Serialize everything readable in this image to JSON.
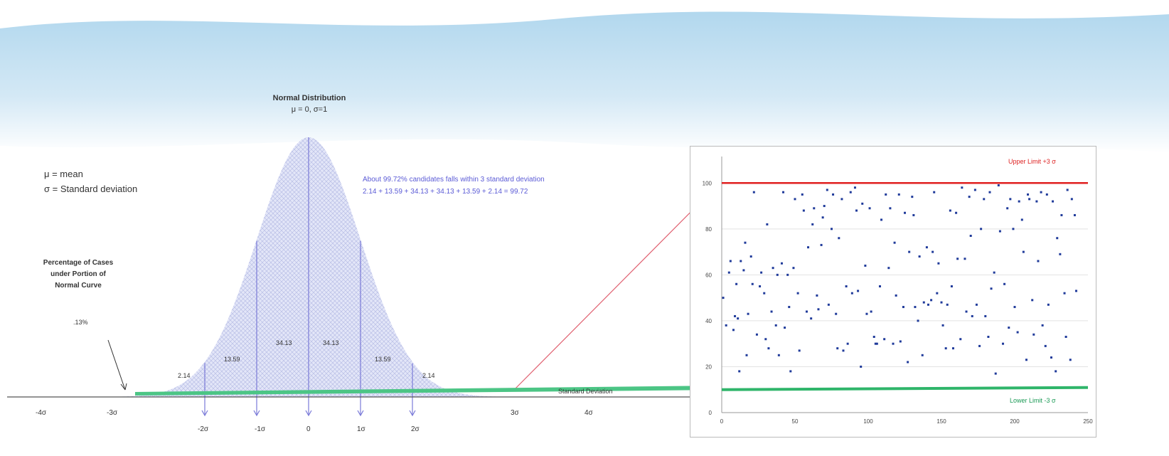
{
  "normal_chart": {
    "title": "Normal Distribution",
    "subtitle": "μ = 0, σ=1",
    "legend_mean": "μ = mean",
    "legend_sd": "σ = Standard deviation",
    "caption_lines": [
      "Percentage of Cases",
      "under Portion of",
      "Normal Curve"
    ],
    "tail_percent": ".13%",
    "note_line1": "About 99.72% candidates falls within 3 standard deviation",
    "note_line2": "2.14 + 13.59 + 34.13 + 34.13 + 13.59 + 2.14 = 99.72",
    "segment_percents": [
      "2.14",
      "13.59",
      "34.13",
      "34.13",
      "13.59",
      "2.14"
    ],
    "axis_caption": "Standard Deviation",
    "top_ticks": [
      "-4σ",
      "-3σ",
      "3σ",
      "4σ"
    ],
    "bottom_ticks": [
      "-2σ",
      "-1σ",
      "0",
      "1σ",
      "2σ"
    ],
    "colors": {
      "fill": "#c9cdf0",
      "axis": "#2a9a5a",
      "arrow": "#7a7ad8",
      "connector": "#e06070"
    }
  },
  "control_chart": {
    "upper_label": "Upper Limit +3 σ",
    "lower_label": "Lower Limit -3 σ",
    "colors": {
      "upper": "#e02020",
      "lower": "#2fb56a",
      "points": "#1f3a9a"
    }
  },
  "chart_data": {
    "type": "scatter",
    "xlabel": "",
    "ylabel": "",
    "xlim": [
      0,
      250
    ],
    "ylim": [
      0,
      110
    ],
    "x_ticks": [
      0,
      50,
      100,
      150,
      200,
      250
    ],
    "y_ticks": [
      0,
      20,
      40,
      60,
      80,
      100
    ],
    "grid": true,
    "upper_limit": 100,
    "lower_limit": 10,
    "series": [
      {
        "x": [
          1,
          3,
          5,
          6,
          8,
          9,
          10,
          11,
          12,
          13,
          15,
          16,
          17,
          18,
          20,
          21,
          22,
          24,
          26,
          27,
          29,
          30,
          31,
          32,
          34,
          35,
          37,
          38,
          39,
          41,
          42,
          43,
          45,
          46,
          47,
          49,
          50,
          52,
          53,
          55,
          56,
          58,
          59,
          61,
          62,
          63,
          65,
          66,
          68,
          69,
          70,
          72,
          73,
          75,
          76,
          78,
          79,
          80,
          82,
          83,
          85,
          86,
          88,
          89,
          91,
          92,
          93,
          95,
          96,
          98,
          99,
          101,
          102,
          104,
          105,
          106,
          108,
          109,
          111,
          112,
          114,
          115,
          117,
          118,
          119,
          121,
          122,
          124,
          125,
          127,
          128,
          130,
          131,
          132,
          134,
          135,
          137,
          138,
          140,
          141,
          143,
          144,
          145,
          147,
          148,
          150,
          151,
          153,
          154,
          156,
          157,
          158,
          160,
          161,
          163,
          164,
          166,
          167,
          169,
          170,
          171,
          173,
          174,
          176,
          177,
          179,
          180,
          182,
          183,
          184,
          186,
          187,
          189,
          190,
          192,
          193,
          195,
          196,
          197,
          199,
          200,
          202,
          203,
          205,
          206,
          208,
          209,
          210,
          212,
          213,
          215,
          216,
          218,
          219,
          221,
          222,
          223,
          225,
          226,
          228,
          229,
          231,
          232,
          234,
          235,
          236,
          238,
          239,
          241,
          242
        ],
        "y": [
          50,
          38,
          61,
          66,
          36,
          42,
          56,
          41,
          18,
          66,
          62,
          74,
          25,
          43,
          68,
          56,
          96,
          34,
          55,
          61,
          52,
          32,
          82,
          28,
          44,
          63,
          38,
          60,
          25,
          65,
          96,
          37,
          60,
          46,
          18,
          63,
          93,
          52,
          27,
          95,
          88,
          44,
          72,
          41,
          82,
          89,
          51,
          45,
          73,
          85,
          90,
          97,
          47,
          80,
          95,
          43,
          28,
          76,
          93,
          27,
          55,
          30,
          96,
          52,
          98,
          88,
          53,
          20,
          91,
          64,
          43,
          89,
          44,
          33,
          30,
          30,
          55,
          84,
          32,
          95,
          63,
          89,
          30,
          74,
          51,
          95,
          31,
          46,
          87,
          22,
          70,
          94,
          86,
          46,
          40,
          68,
          25,
          48,
          72,
          47,
          49,
          70,
          96,
          52,
          65,
          48,
          38,
          28,
          47,
          88,
          55,
          28,
          87,
          67,
          32,
          98,
          67,
          44,
          94,
          77,
          42,
          97,
          47,
          29,
          80,
          93,
          42,
          33,
          96,
          54,
          61,
          17,
          99,
          79,
          30,
          56,
          89,
          37,
          93,
          80,
          46,
          35,
          92,
          84,
          70,
          23,
          95,
          93,
          49,
          34,
          92,
          66,
          96,
          38,
          29,
          95,
          47,
          24,
          92,
          18,
          76,
          69,
          86,
          52,
          33,
          97,
          23,
          93,
          86,
          53
        ],
        "color": "#1f3a9a"
      }
    ]
  }
}
